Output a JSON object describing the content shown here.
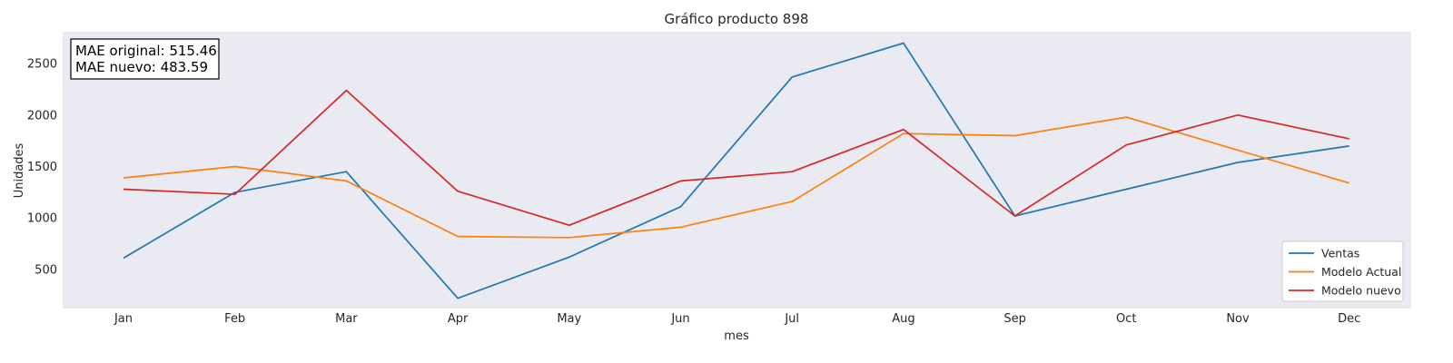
{
  "chart_data": {
    "type": "line",
    "title": "Gráfico producto 898",
    "xlabel": "mes",
    "ylabel": "Unidades",
    "categories": [
      "Jan",
      "Feb",
      "Mar",
      "Apr",
      "May",
      "Jun",
      "Jul",
      "Aug",
      "Sep",
      "Oct",
      "Nov",
      "Dec"
    ],
    "yticks": [
      500,
      1000,
      1500,
      2000,
      2500
    ],
    "ylim": [
      120,
      2810
    ],
    "grid": false,
    "legend_position": "lower-right",
    "background_color": "#eaeaf2",
    "series": [
      {
        "name": "Ventas",
        "color": "#1f77b4",
        "values": [
          610,
          1250,
          1450,
          220,
          620,
          1110,
          2370,
          2700,
          1020,
          1280,
          1540,
          1700
        ]
      },
      {
        "name": "Modelo Actual",
        "color": "#ff7f0e",
        "values": [
          1390,
          1500,
          1360,
          820,
          810,
          910,
          1160,
          1820,
          1800,
          1980,
          1660,
          1340
        ]
      },
      {
        "name": "Modelo nuevo",
        "color": "#d62728",
        "values": [
          1280,
          1230,
          2240,
          1260,
          930,
          1360,
          1450,
          1860,
          1020,
          1710,
          2000,
          1770
        ]
      }
    ],
    "annotation": {
      "line1": "MAE original: 515.46",
      "line2": "MAE nuevo: 483.59"
    }
  }
}
